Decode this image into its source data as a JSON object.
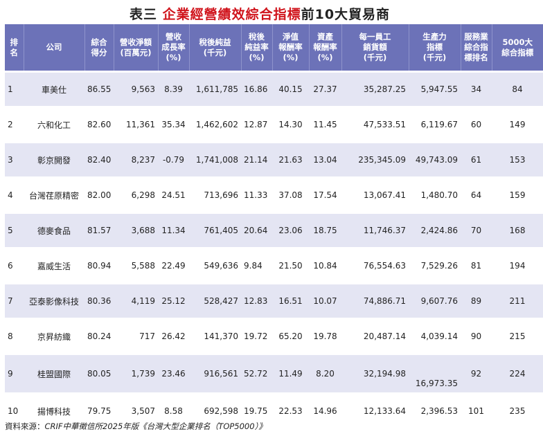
{
  "title": {
    "prefix": "表三 ",
    "highlight": "企業經營績效綜合指標",
    "suffix": "前10大貿易商"
  },
  "headers": [
    [
      "排",
      "名"
    ],
    [
      "公司"
    ],
    [
      "綜合",
      "得分"
    ],
    [
      "營收淨額",
      "(百萬元)"
    ],
    [
      "營收",
      "成長率",
      "(%)"
    ],
    [
      "稅後純益",
      "(千元)"
    ],
    [
      "稅後",
      "純益率",
      "(%)"
    ],
    [
      "淨值",
      "報酬率",
      "(%)"
    ],
    [
      "資產",
      "報酬率",
      "(%)"
    ],
    [
      "每一員工",
      "銷貨額",
      "(千元)"
    ],
    [
      "生產力",
      "指標",
      "(千元)"
    ],
    [
      "服務業",
      "綜合指",
      "標排名"
    ],
    [
      "5000大",
      "綜合指標"
    ]
  ],
  "rows": [
    [
      "1",
      "車美仕",
      "86.55",
      "9,563",
      "8.39",
      "1,611,785",
      "16.86",
      "40.15",
      "27.37",
      "35,287.25",
      "5,947.55",
      "34",
      "84"
    ],
    [
      "2",
      "六和化工",
      "82.60",
      "11,361",
      "35.34",
      "1,462,602",
      "12.87",
      "14.30",
      "11.45",
      "47,533.51",
      "6,119.67",
      "60",
      "149"
    ],
    [
      "3",
      "彰京開發",
      "82.40",
      "8,237",
      "-0.79",
      "1,741,008",
      "21.14",
      "21.63",
      "13.04",
      "235,345.09",
      "49,743.09",
      "61",
      "153"
    ],
    [
      "4",
      "台灣荏原精密",
      "82.00",
      "6,298",
      "24.51",
      "713,696",
      "11.33",
      "37.08",
      "17.54",
      "13,067.41",
      "1,480.70",
      "64",
      "159"
    ],
    [
      "5",
      "德麥食品",
      "81.57",
      "3,688",
      "11.34",
      "761,405",
      "20.64",
      "23.06",
      "18.75",
      "11,746.37",
      "2,424.86",
      "70",
      "168"
    ],
    [
      "6",
      "嘉威生活",
      "80.94",
      "5,588",
      "22.49",
      "549,636",
      "9.84",
      "21.50",
      "10.84",
      "76,554.63",
      "7,529.26",
      "81",
      "194"
    ],
    [
      "7",
      "亞泰影像科技",
      "80.36",
      "4,119",
      "25.12",
      "528,427",
      "12.83",
      "16.51",
      "10.07",
      "74,886.71",
      "9,607.76",
      "89",
      "211"
    ],
    [
      "8",
      "京昇紡織",
      "80.24",
      "717",
      "26.42",
      "141,370",
      "19.72",
      "65.20",
      "19.78",
      "20,487.14",
      "4,039.14",
      "90",
      "215"
    ],
    [
      "9",
      "桂盟國際",
      "80.05",
      "1,739",
      "23.46",
      "916,561",
      "52.72",
      "11.49",
      "8.20",
      "32,194.98",
      "16,973.35",
      "92",
      "224"
    ],
    [
      "10",
      "揚博科技",
      "79.75",
      "3,507",
      "8.58",
      "692,598",
      "19.75",
      "22.53",
      "14.96",
      "12,133.64",
      "2,396.53",
      "101",
      "235"
    ]
  ],
  "footnote": {
    "label": "資料來源：",
    "source": "CRIF中華徵信所2025年版《台灣大型企業排名（TOP5000）》"
  }
}
